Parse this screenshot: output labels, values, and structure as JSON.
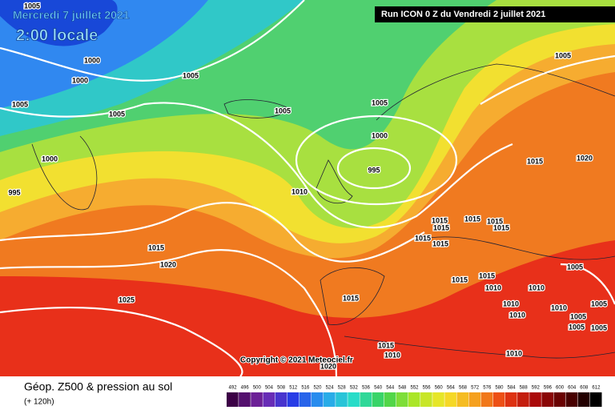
{
  "header": {
    "date": "Mercredi 7 juillet 2021",
    "time": "2:00 locale",
    "run": "Run ICON 0 Z du Vendredi 2 juillet 2021"
  },
  "map": {
    "copyright": "Copyright © 2021 Meteociel.fr",
    "isobar_labels": [
      1005,
      1000,
      1000,
      1005,
      1005,
      1005,
      1005,
      1005,
      1005,
      1000,
      1000,
      995,
      995,
      1010,
      1015,
      1020,
      1015,
      1015,
      1015,
      1015,
      1015,
      1015,
      1015,
      1015,
      1020,
      1025,
      1015,
      1015,
      1015,
      1010,
      1005,
      1010,
      1010,
      1010,
      1005,
      1005,
      1010,
      1005,
      1005,
      1010,
      1015,
      1010,
      1020
    ]
  },
  "footer": {
    "title": "Géop. Z500 & pression au sol",
    "lead": "(+ 120h)",
    "scale": [
      492,
      496,
      500,
      504,
      508,
      512,
      516,
      520,
      524,
      528,
      532,
      536,
      540,
      544,
      548,
      552,
      556,
      560,
      564,
      568,
      572,
      576,
      580,
      584,
      588,
      592,
      596,
      600,
      604,
      608,
      612
    ]
  }
}
